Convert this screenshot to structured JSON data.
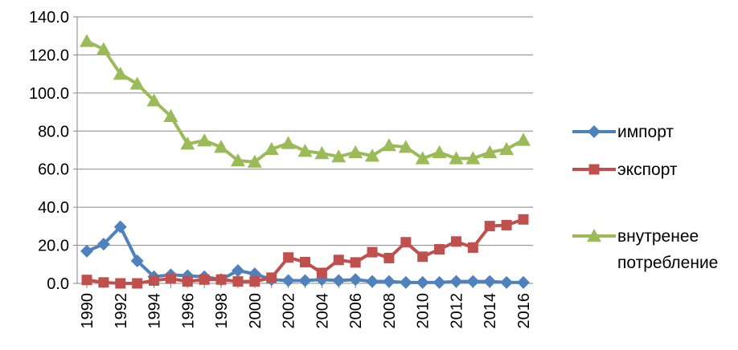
{
  "chart_data": {
    "type": "line",
    "title": "",
    "xlabel": "",
    "ylabel": "",
    "ylim": [
      0,
      140
    ],
    "y_ticks": [
      "0.0",
      "20.0",
      "40.0",
      "60.0",
      "80.0",
      "100.0",
      "120.0",
      "140.0"
    ],
    "x_tick_labels": [
      "1990",
      "1992",
      "1994",
      "1996",
      "1998",
      "2000",
      "2002",
      "2004",
      "2006",
      "2008",
      "2010",
      "2012",
      "2014",
      "2016"
    ],
    "grid": "horizontal",
    "legend_position": "right",
    "x": [
      1990,
      1991,
      1992,
      1993,
      1994,
      1995,
      1996,
      1997,
      1998,
      1999,
      2000,
      2001,
      2002,
      2003,
      2004,
      2005,
      2006,
      2007,
      2008,
      2009,
      2010,
      2011,
      2012,
      2013,
      2014,
      2015,
      2016
    ],
    "series": [
      {
        "name": "импорт",
        "color": "#4F81BD",
        "marker": "diamond",
        "values": [
          16.9,
          20.6,
          29.7,
          11.8,
          3.5,
          4.5,
          4.0,
          3.5,
          2.0,
          6.7,
          5.0,
          2.0,
          1.5,
          1.5,
          2.0,
          1.5,
          2.0,
          1.0,
          1.0,
          0.5,
          0.5,
          0.5,
          1.0,
          1.0,
          1.0,
          0.5,
          0.5
        ]
      },
      {
        "name": "экспорт",
        "color": "#C0504D",
        "marker": "square",
        "values": [
          1.8,
          0.5,
          0.0,
          0.0,
          1.5,
          2.5,
          1.0,
          2.0,
          2.0,
          1.0,
          1.0,
          3.0,
          13.6,
          11.2,
          5.5,
          12.3,
          11.0,
          16.4,
          13.3,
          21.6,
          14.0,
          17.9,
          22.0,
          18.8,
          30.1,
          30.6,
          33.6
        ]
      },
      {
        "name": "внутренее потребление",
        "color": "#9BBB59",
        "marker": "triangle",
        "values": [
          127.2,
          123.0,
          110.0,
          104.8,
          96.0,
          87.8,
          73.3,
          75.0,
          71.6,
          64.5,
          63.8,
          70.5,
          73.6,
          69.5,
          68.3,
          66.6,
          68.8,
          67.0,
          72.5,
          71.6,
          65.6,
          68.8,
          65.6,
          65.6,
          68.8,
          70.5,
          75.3
        ]
      }
    ],
    "legend": [
      {
        "lines": [
          "импорт"
        ]
      },
      {
        "lines": [
          "экспорт"
        ]
      },
      {
        "lines": [
          "внутренее",
          "потребление"
        ]
      }
    ]
  }
}
